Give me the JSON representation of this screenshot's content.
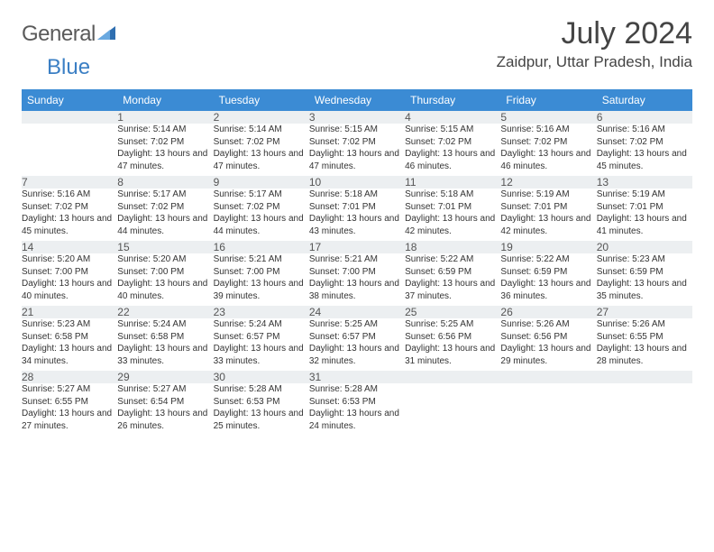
{
  "logo": {
    "word1": "General",
    "word2": "Blue"
  },
  "title": "July 2024",
  "location": "Zaidpur, Uttar Pradesh, India",
  "colors": {
    "header_bg": "#3b8bd4",
    "header_text": "#ffffff",
    "daynum_bg": "#eceff1",
    "border_top": "#3b6fa0",
    "logo_gray": "#5a5a5a",
    "logo_blue": "#3b7fc4"
  },
  "weekdays": [
    "Sunday",
    "Monday",
    "Tuesday",
    "Wednesday",
    "Thursday",
    "Friday",
    "Saturday"
  ],
  "start_offset": 1,
  "days": [
    {
      "n": 1,
      "sr": "5:14 AM",
      "ss": "7:02 PM",
      "dl": "13 hours and 47 minutes."
    },
    {
      "n": 2,
      "sr": "5:14 AM",
      "ss": "7:02 PM",
      "dl": "13 hours and 47 minutes."
    },
    {
      "n": 3,
      "sr": "5:15 AM",
      "ss": "7:02 PM",
      "dl": "13 hours and 47 minutes."
    },
    {
      "n": 4,
      "sr": "5:15 AM",
      "ss": "7:02 PM",
      "dl": "13 hours and 46 minutes."
    },
    {
      "n": 5,
      "sr": "5:16 AM",
      "ss": "7:02 PM",
      "dl": "13 hours and 46 minutes."
    },
    {
      "n": 6,
      "sr": "5:16 AM",
      "ss": "7:02 PM",
      "dl": "13 hours and 45 minutes."
    },
    {
      "n": 7,
      "sr": "5:16 AM",
      "ss": "7:02 PM",
      "dl": "13 hours and 45 minutes."
    },
    {
      "n": 8,
      "sr": "5:17 AM",
      "ss": "7:02 PM",
      "dl": "13 hours and 44 minutes."
    },
    {
      "n": 9,
      "sr": "5:17 AM",
      "ss": "7:02 PM",
      "dl": "13 hours and 44 minutes."
    },
    {
      "n": 10,
      "sr": "5:18 AM",
      "ss": "7:01 PM",
      "dl": "13 hours and 43 minutes."
    },
    {
      "n": 11,
      "sr": "5:18 AM",
      "ss": "7:01 PM",
      "dl": "13 hours and 42 minutes."
    },
    {
      "n": 12,
      "sr": "5:19 AM",
      "ss": "7:01 PM",
      "dl": "13 hours and 42 minutes."
    },
    {
      "n": 13,
      "sr": "5:19 AM",
      "ss": "7:01 PM",
      "dl": "13 hours and 41 minutes."
    },
    {
      "n": 14,
      "sr": "5:20 AM",
      "ss": "7:00 PM",
      "dl": "13 hours and 40 minutes."
    },
    {
      "n": 15,
      "sr": "5:20 AM",
      "ss": "7:00 PM",
      "dl": "13 hours and 40 minutes."
    },
    {
      "n": 16,
      "sr": "5:21 AM",
      "ss": "7:00 PM",
      "dl": "13 hours and 39 minutes."
    },
    {
      "n": 17,
      "sr": "5:21 AM",
      "ss": "7:00 PM",
      "dl": "13 hours and 38 minutes."
    },
    {
      "n": 18,
      "sr": "5:22 AM",
      "ss": "6:59 PM",
      "dl": "13 hours and 37 minutes."
    },
    {
      "n": 19,
      "sr": "5:22 AM",
      "ss": "6:59 PM",
      "dl": "13 hours and 36 minutes."
    },
    {
      "n": 20,
      "sr": "5:23 AM",
      "ss": "6:59 PM",
      "dl": "13 hours and 35 minutes."
    },
    {
      "n": 21,
      "sr": "5:23 AM",
      "ss": "6:58 PM",
      "dl": "13 hours and 34 minutes."
    },
    {
      "n": 22,
      "sr": "5:24 AM",
      "ss": "6:58 PM",
      "dl": "13 hours and 33 minutes."
    },
    {
      "n": 23,
      "sr": "5:24 AM",
      "ss": "6:57 PM",
      "dl": "13 hours and 33 minutes."
    },
    {
      "n": 24,
      "sr": "5:25 AM",
      "ss": "6:57 PM",
      "dl": "13 hours and 32 minutes."
    },
    {
      "n": 25,
      "sr": "5:25 AM",
      "ss": "6:56 PM",
      "dl": "13 hours and 31 minutes."
    },
    {
      "n": 26,
      "sr": "5:26 AM",
      "ss": "6:56 PM",
      "dl": "13 hours and 29 minutes."
    },
    {
      "n": 27,
      "sr": "5:26 AM",
      "ss": "6:55 PM",
      "dl": "13 hours and 28 minutes."
    },
    {
      "n": 28,
      "sr": "5:27 AM",
      "ss": "6:55 PM",
      "dl": "13 hours and 27 minutes."
    },
    {
      "n": 29,
      "sr": "5:27 AM",
      "ss": "6:54 PM",
      "dl": "13 hours and 26 minutes."
    },
    {
      "n": 30,
      "sr": "5:28 AM",
      "ss": "6:53 PM",
      "dl": "13 hours and 25 minutes."
    },
    {
      "n": 31,
      "sr": "5:28 AM",
      "ss": "6:53 PM",
      "dl": "13 hours and 24 minutes."
    }
  ],
  "labels": {
    "sunrise": "Sunrise:",
    "sunset": "Sunset:",
    "daylight": "Daylight:"
  }
}
